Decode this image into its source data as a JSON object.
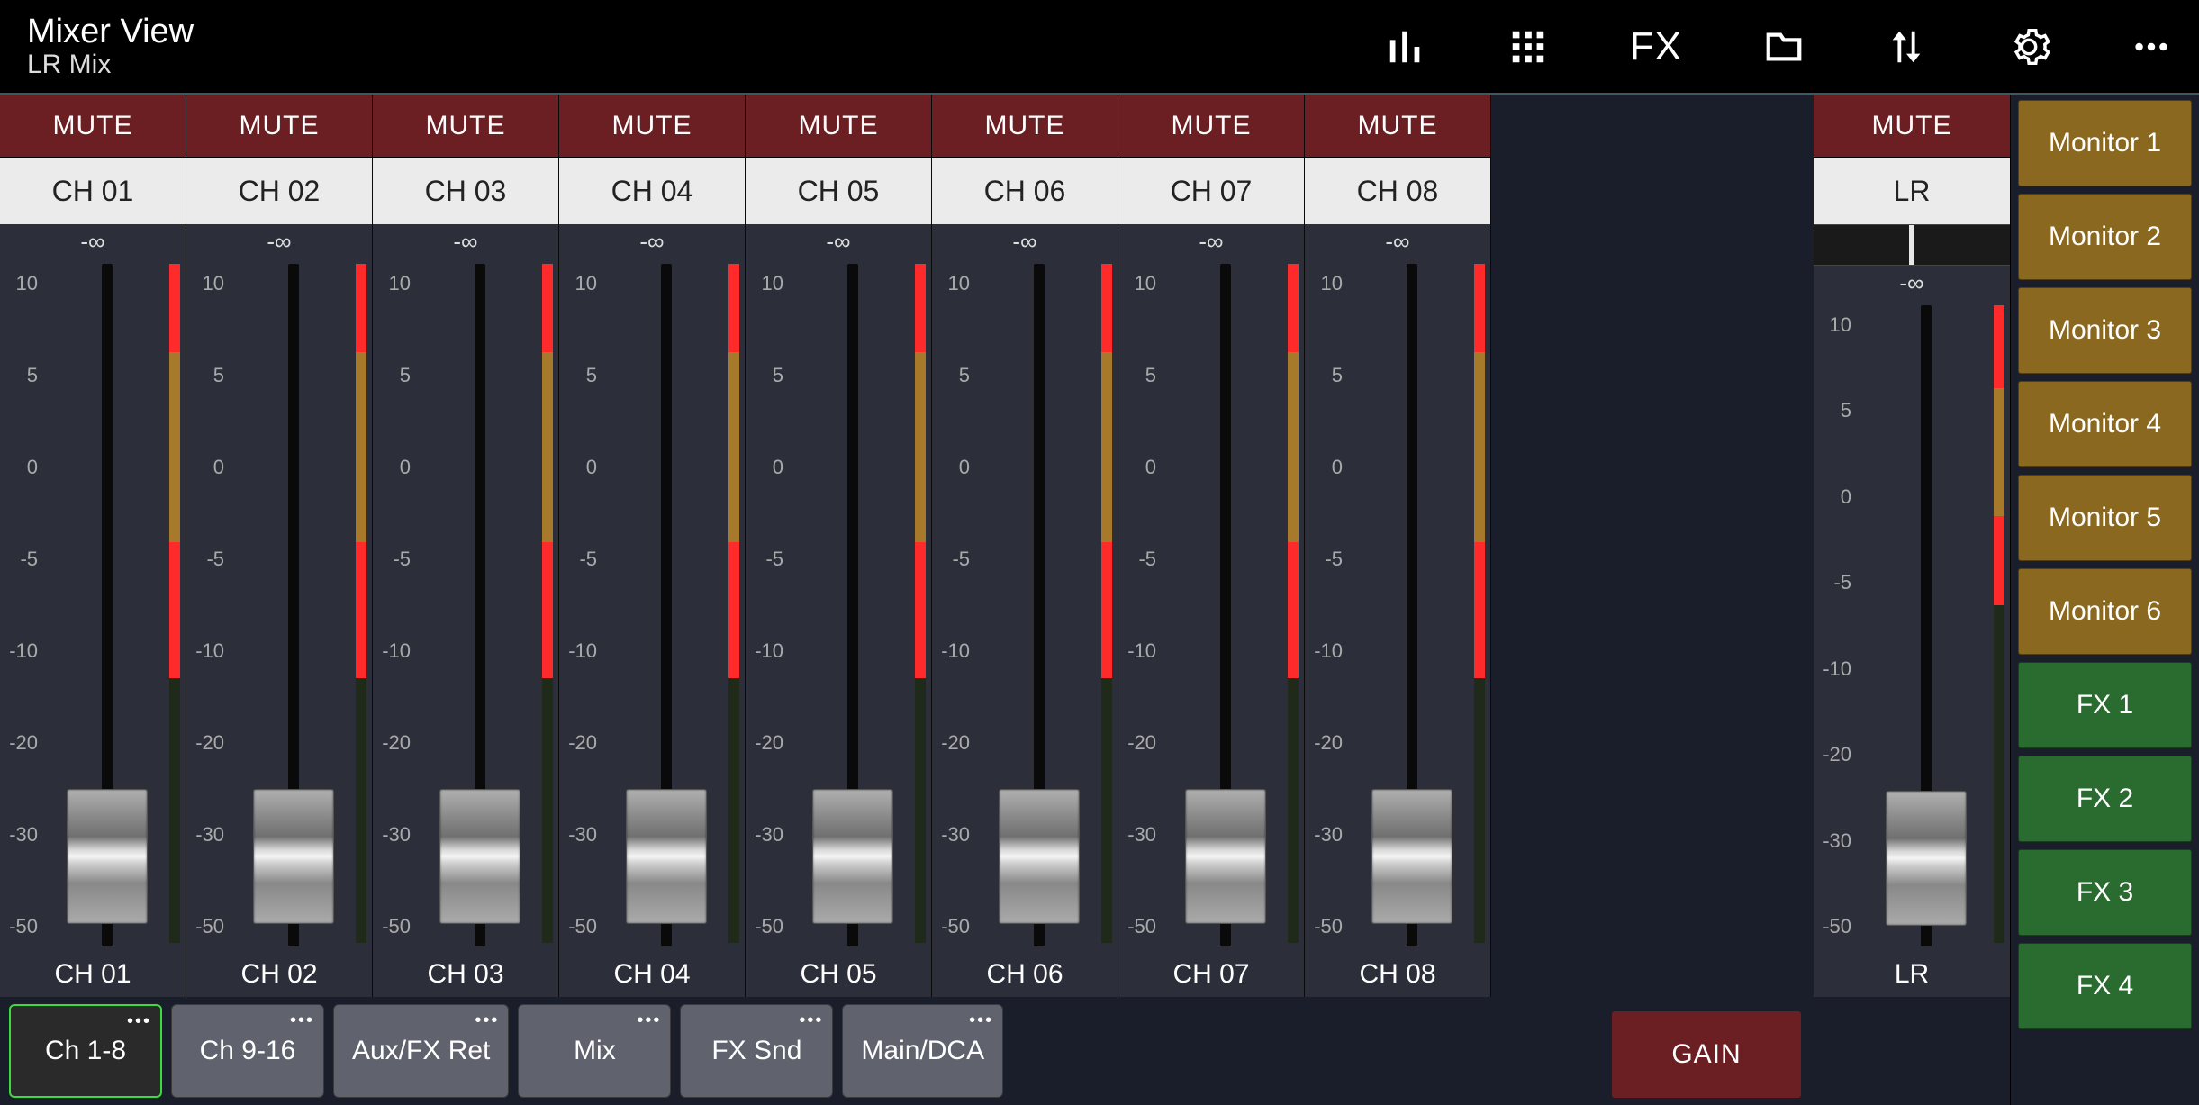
{
  "header": {
    "title": "Mixer View",
    "subtitle": "LR Mix",
    "fx_label": "FX"
  },
  "mute_label": "MUTE",
  "channels": [
    {
      "top": "CH 01",
      "db": "-∞",
      "bottom": "CH 01"
    },
    {
      "top": "CH 02",
      "db": "-∞",
      "bottom": "CH 02"
    },
    {
      "top": "CH 03",
      "db": "-∞",
      "bottom": "CH 03"
    },
    {
      "top": "CH 04",
      "db": "-∞",
      "bottom": "CH 04"
    },
    {
      "top": "CH 05",
      "db": "-∞",
      "bottom": "CH 05"
    },
    {
      "top": "CH 06",
      "db": "-∞",
      "bottom": "CH 06"
    },
    {
      "top": "CH 07",
      "db": "-∞",
      "bottom": "CH 07"
    },
    {
      "top": "CH 08",
      "db": "-∞",
      "bottom": "CH 08"
    }
  ],
  "scale_labels": [
    "10",
    "5",
    "0",
    "-5",
    "-10",
    "-20",
    "-30",
    "-50"
  ],
  "fader_bottom_pct": 4,
  "meter": {
    "amber_pct": 28,
    "red_top_pct": 13,
    "red_mid_pct": 20,
    "colors": {
      "amber": "#a67a2a",
      "red": "#ff2b2b"
    }
  },
  "master": {
    "label": "LR",
    "db": "-∞",
    "bottom": "LR",
    "meter_amber_pct": 20,
    "meter_red_pct": 14
  },
  "right_panel": {
    "monitors": [
      "Monitor 1",
      "Monitor 2",
      "Monitor 3",
      "Monitor 4",
      "Monitor 5",
      "Monitor 6"
    ],
    "fx": [
      "FX 1",
      "FX 2",
      "FX 3",
      "FX 4"
    ],
    "gain_label": "GAIN"
  },
  "layers": [
    {
      "label": "Ch 1-8",
      "active": true
    },
    {
      "label": "Ch 9-16",
      "active": false
    },
    {
      "label": "Aux/FX Ret",
      "active": false
    },
    {
      "label": "Mix",
      "active": false
    },
    {
      "label": "FX Snd",
      "active": false
    },
    {
      "label": "Main/DCA",
      "active": false
    }
  ]
}
